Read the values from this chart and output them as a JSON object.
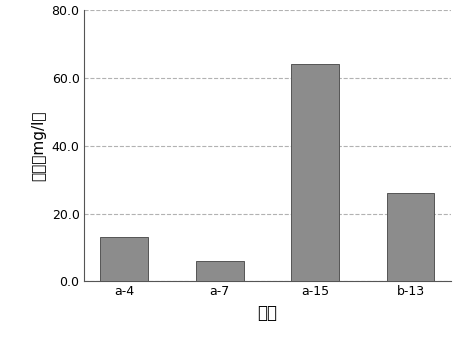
{
  "categories": [
    "a-4",
    "a-7",
    "a-15",
    "b-13"
  ],
  "values": [
    13.0,
    6.0,
    64.0,
    26.0
  ],
  "bar_color": "#8c8c8c",
  "bar_edgecolor": "#555555",
  "title": "",
  "xlabel": "处理",
  "ylabel": "浓度（mg/l）",
  "ylim": [
    0,
    80.0
  ],
  "yticks": [
    0.0,
    20.0,
    40.0,
    60.0,
    80.0
  ],
  "ytick_labels": [
    "0.0",
    "20.0",
    "40.0",
    "60.0",
    "80.0"
  ],
  "grid_color": "#aaaaaa",
  "grid_linestyle": "--",
  "background_color": "#ffffff",
  "bar_width": 0.5,
  "xlabel_fontsize": 12,
  "ylabel_fontsize": 11,
  "tick_fontsize": 9,
  "figure_width": 4.65,
  "figure_height": 3.43,
  "dpi": 100
}
